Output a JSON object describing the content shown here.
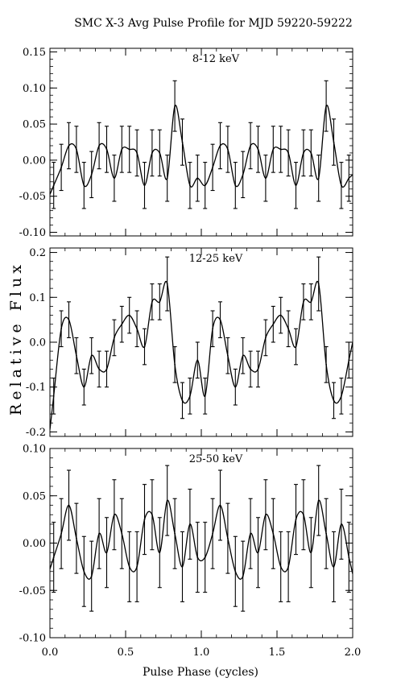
{
  "title": "SMC X-3    Avg Pulse Profile for MJD 59220-59222",
  "ylabel": "Relative Flux",
  "xlabel": "Pulse Phase (cycles)",
  "chart_data": [
    {
      "type": "line",
      "label": "8-12 keV",
      "xlim": [
        0.0,
        2.0
      ],
      "ylim": [
        -0.105,
        0.155
      ],
      "yticks": [
        0.15,
        0.1,
        0.05,
        0.0,
        -0.05,
        -0.1
      ],
      "ytick_labels": [
        "0.15",
        "0.10",
        "0.05",
        "0.00",
        "-0.05",
        "-0.10"
      ],
      "xticks": [
        0.0,
        0.5,
        1.0,
        1.5,
        2.0
      ],
      "points": {
        "x": [
          0.025,
          0.075,
          0.125,
          0.175,
          0.225,
          0.275,
          0.325,
          0.375,
          0.425,
          0.475,
          0.525,
          0.575,
          0.625,
          0.675,
          0.725,
          0.775,
          0.825,
          0.875,
          0.925,
          0.975,
          1.025,
          1.075,
          1.125,
          1.175,
          1.225,
          1.275,
          1.325,
          1.375,
          1.425,
          1.475,
          1.525,
          1.575,
          1.625,
          1.675,
          1.725,
          1.775,
          1.825,
          1.875,
          1.925,
          1.975
        ],
        "y": [
          -0.035,
          -0.01,
          0.02,
          0.015,
          -0.035,
          -0.02,
          0.02,
          0.015,
          -0.025,
          0.015,
          0.015,
          0.01,
          -0.035,
          0.01,
          0.01,
          -0.025,
          0.075,
          0.025,
          -0.035,
          -0.025,
          -0.035,
          -0.01,
          0.02,
          0.015,
          -0.035,
          -0.02,
          0.02,
          0.015,
          -0.025,
          0.015,
          0.015,
          0.01,
          -0.035,
          0.01,
          0.01,
          -0.025,
          0.075,
          0.025,
          -0.035,
          -0.025
        ],
        "err": [
          0.032,
          0.032,
          0.032,
          0.032,
          0.032,
          0.032,
          0.032,
          0.032,
          0.032,
          0.032,
          0.032,
          0.032,
          0.032,
          0.032,
          0.032,
          0.032,
          0.035,
          0.032,
          0.032,
          0.032,
          0.032,
          0.032,
          0.032,
          0.032,
          0.032,
          0.032,
          0.032,
          0.032,
          0.032,
          0.032,
          0.032,
          0.032,
          0.032,
          0.032,
          0.032,
          0.032,
          0.035,
          0.032,
          0.032,
          0.032
        ]
      }
    },
    {
      "type": "line",
      "label": "12-25 keV",
      "xlim": [
        0.0,
        2.0
      ],
      "ylim": [
        -0.21,
        0.21
      ],
      "yticks": [
        0.2,
        0.1,
        0.0,
        -0.1,
        -0.2
      ],
      "ytick_labels": [
        "0.2",
        "0.1",
        "0.0",
        "-0.1",
        "-0.2"
      ],
      "xticks": [
        0.0,
        0.5,
        1.0,
        1.5,
        2.0
      ],
      "points": {
        "x": [
          0.025,
          0.075,
          0.125,
          0.175,
          0.225,
          0.275,
          0.325,
          0.375,
          0.425,
          0.475,
          0.525,
          0.575,
          0.625,
          0.675,
          0.725,
          0.775,
          0.825,
          0.875,
          0.925,
          0.975,
          1.025,
          1.075,
          1.125,
          1.175,
          1.225,
          1.275,
          1.325,
          1.375,
          1.425,
          1.475,
          1.525,
          1.575,
          1.625,
          1.675,
          1.725,
          1.775,
          1.825,
          1.875,
          1.925,
          1.975
        ],
        "y": [
          -0.12,
          0.03,
          0.05,
          -0.03,
          -0.1,
          -0.03,
          -0.06,
          -0.06,
          0.01,
          0.04,
          0.06,
          0.03,
          -0.01,
          0.09,
          0.09,
          0.13,
          -0.05,
          -0.13,
          -0.12,
          -0.04,
          -0.12,
          0.03,
          0.05,
          -0.03,
          -0.1,
          -0.03,
          -0.06,
          -0.06,
          0.01,
          0.04,
          0.06,
          0.03,
          -0.01,
          0.09,
          0.09,
          0.13,
          -0.05,
          -0.13,
          -0.12,
          -0.04
        ],
        "err": [
          0.04,
          0.04,
          0.04,
          0.04,
          0.04,
          0.04,
          0.04,
          0.04,
          0.04,
          0.04,
          0.04,
          0.04,
          0.04,
          0.04,
          0.04,
          0.06,
          0.04,
          0.04,
          0.04,
          0.04,
          0.04,
          0.04,
          0.04,
          0.04,
          0.04,
          0.04,
          0.04,
          0.04,
          0.04,
          0.04,
          0.04,
          0.04,
          0.04,
          0.04,
          0.04,
          0.06,
          0.04,
          0.04,
          0.04,
          0.04
        ]
      }
    },
    {
      "type": "line",
      "label": "25-50 keV",
      "xlim": [
        0.0,
        2.0
      ],
      "ylim": [
        -0.1,
        0.1
      ],
      "yticks": [
        0.1,
        0.05,
        0.0,
        -0.05,
        -0.1
      ],
      "ytick_labels": [
        "0.10",
        "0.05",
        "0.00",
        "-0.05",
        "-0.10"
      ],
      "xticks": [
        0.0,
        0.5,
        1.0,
        1.5,
        2.0
      ],
      "xtick_labels": [
        "0.0",
        "0.5",
        "1.0",
        "1.5",
        "2.0"
      ],
      "points": {
        "x": [
          0.025,
          0.075,
          0.125,
          0.175,
          0.225,
          0.275,
          0.325,
          0.375,
          0.425,
          0.475,
          0.525,
          0.575,
          0.625,
          0.675,
          0.725,
          0.775,
          0.825,
          0.875,
          0.925,
          0.975,
          1.025,
          1.075,
          1.125,
          1.175,
          1.225,
          1.275,
          1.325,
          1.375,
          1.425,
          1.475,
          1.525,
          1.575,
          1.625,
          1.675,
          1.725,
          1.775,
          1.825,
          1.875,
          1.925,
          1.975
        ],
        "y": [
          -0.015,
          0.01,
          0.04,
          0.005,
          -0.03,
          -0.035,
          0.01,
          -0.01,
          0.03,
          0.01,
          -0.025,
          -0.025,
          0.025,
          0.03,
          -0.01,
          0.045,
          0.01,
          -0.025,
          0.02,
          -0.015,
          -0.015,
          0.01,
          0.04,
          0.005,
          -0.03,
          -0.035,
          0.01,
          -0.01,
          0.03,
          0.01,
          -0.025,
          -0.025,
          0.025,
          0.03,
          -0.01,
          0.045,
          0.01,
          -0.025,
          0.02,
          -0.015
        ],
        "err": [
          0.037,
          0.037,
          0.037,
          0.037,
          0.037,
          0.037,
          0.037,
          0.037,
          0.037,
          0.037,
          0.037,
          0.037,
          0.037,
          0.037,
          0.037,
          0.037,
          0.037,
          0.037,
          0.037,
          0.037,
          0.037,
          0.037,
          0.037,
          0.037,
          0.037,
          0.037,
          0.037,
          0.037,
          0.037,
          0.037,
          0.037,
          0.037,
          0.037,
          0.037,
          0.037,
          0.037,
          0.037,
          0.037,
          0.037,
          0.037
        ]
      }
    }
  ]
}
